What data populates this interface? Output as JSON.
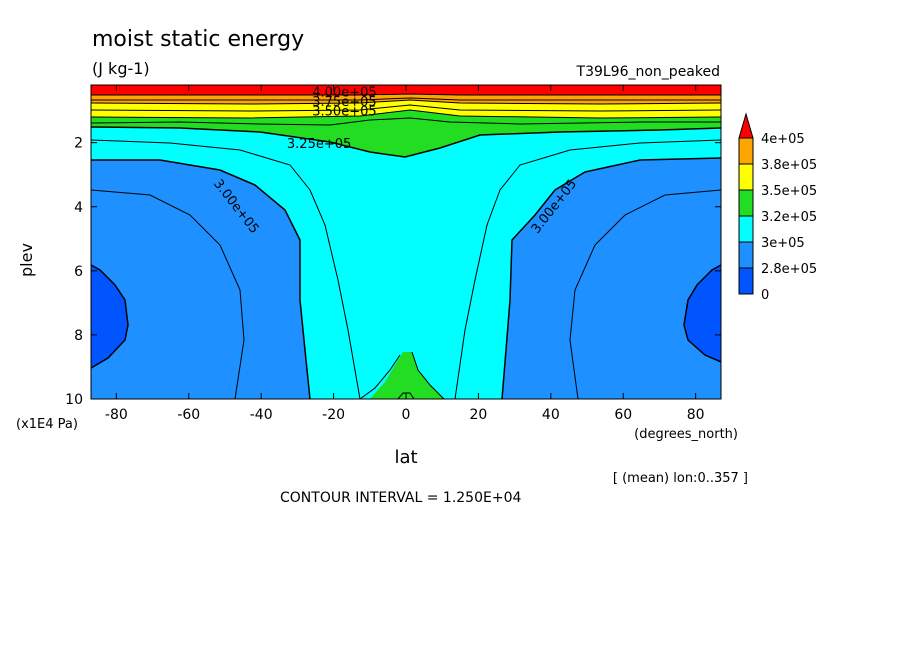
{
  "chart_data": {
    "type": "contour",
    "title": "moist static energy",
    "units": "(J kg-1)",
    "run_label": "T39L96_non_peaked",
    "xlabel": "lat",
    "x_units": "(degrees_north)",
    "ylabel": "plev",
    "y_units": "(x1E4 Pa)",
    "xlim": [
      -87,
      87
    ],
    "ylim": [
      10,
      0.2
    ],
    "x_ticks": [
      -80,
      -60,
      -40,
      -20,
      0,
      20,
      40,
      60,
      80
    ],
    "x_tick_labels": [
      "-80",
      "-60",
      "-40",
      "-20",
      "0",
      "20",
      "40",
      "60",
      "80"
    ],
    "y_ticks": [
      2,
      4,
      6,
      8,
      10
    ],
    "y_tick_labels": [
      "2",
      "4",
      "6",
      "8",
      "10"
    ],
    "mean_note": "[ (mean) lon:0..357 ]",
    "contour_interval": "CONTOUR INTERVAL = 1.250E+04",
    "legend": {
      "placement": "right",
      "labels": [
        "4e+05",
        "3.8e+05",
        "3.5e+05",
        "3.2e+05",
        "3e+05",
        "2.8e+05",
        "0"
      ],
      "colors": [
        "#ff0000",
        "#ffa500",
        "#ffff00",
        "#22dd22",
        "#00ffff",
        "#1e90ff",
        "#0055ff"
      ]
    },
    "contour_labels": [
      {
        "text": "4.00e+05",
        "lat": -17,
        "plev": 0.45
      },
      {
        "text": "3.75e+05",
        "lat": -17,
        "plev": 0.75
      },
      {
        "text": "3.50e+05",
        "lat": -17,
        "plev": 1.05
      },
      {
        "text": "3.25e+05",
        "lat": -24,
        "plev": 2.05
      },
      {
        "text": "3.00e+05",
        "lat": -47,
        "plev": 4.0
      },
      {
        "text": "3.00e+05",
        "lat": 41,
        "plev": 4.0
      }
    ],
    "shading_bands": [
      {
        "range": "> 4e+05",
        "color": "#ff0000"
      },
      {
        "range": "3.875e+05 - 4e+05",
        "color": "#ffa500"
      },
      {
        "range": "3.625e+05 - 3.875e+05",
        "color": "#ffff00"
      },
      {
        "range": "3.25e+05 - 3.625e+05",
        "color": "#22dd22"
      },
      {
        "range": "3e+05 - 3.25e+05",
        "color": "#00ffff"
      },
      {
        "range": "2.8e+05 - 3e+05",
        "color": "#1e90ff"
      },
      {
        "range": "< 2.8e+05",
        "color": "#0055ff"
      }
    ]
  }
}
